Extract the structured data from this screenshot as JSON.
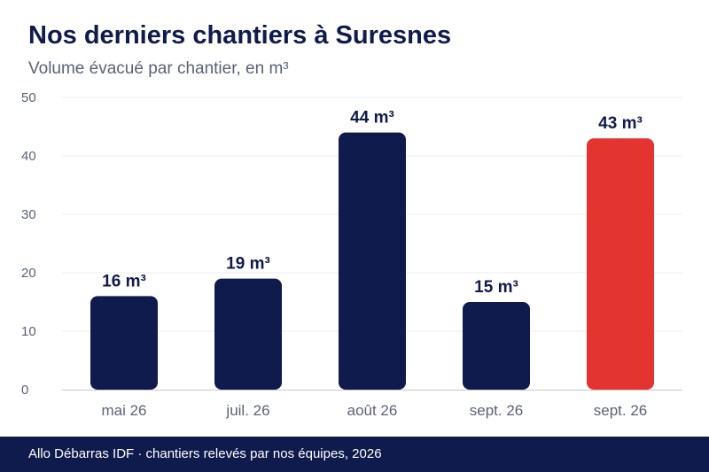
{
  "header": {
    "title": "Nos derniers chantiers à Suresnes",
    "subtitle": "Volume évacué par chantier, en m³"
  },
  "footer": {
    "text": "Allo Débarras IDF · chantiers relevés par nos équipes, 2026"
  },
  "colors": {
    "bar": "#0f1b4c",
    "highlight": "#e3342f",
    "grid": "#ececf1",
    "axis_text": "#5b6178",
    "label_text": "#0f1b4c"
  },
  "chart_data": {
    "type": "bar",
    "title": "Nos derniers chantiers à Suresnes",
    "subtitle": "Volume évacué par chantier, en m³",
    "categories": [
      "mai 26",
      "juil. 26",
      "août 26",
      "sept. 26",
      "sept. 26"
    ],
    "values": [
      16,
      19,
      44,
      15,
      43
    ],
    "data_labels": [
      "16 m³",
      "19 m³",
      "44 m³",
      "15 m³",
      "43 m³"
    ],
    "highlight_index": 4,
    "ylim": [
      0,
      50
    ],
    "yticks": [
      0,
      10,
      20,
      30,
      40,
      50
    ],
    "grid": true,
    "legend": "none"
  }
}
